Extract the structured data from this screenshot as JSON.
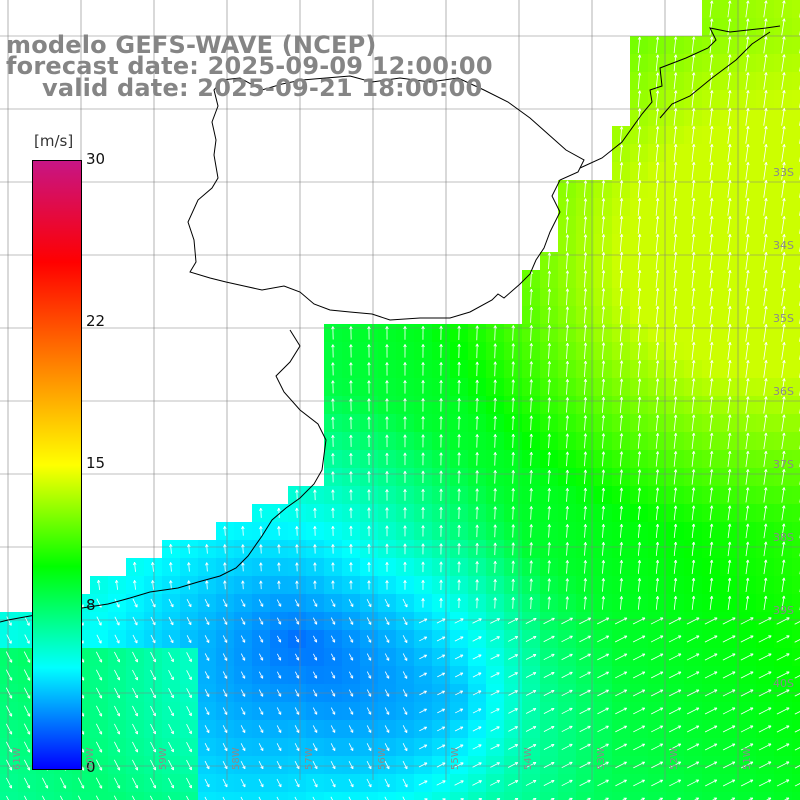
{
  "title": {
    "line1": "modelo GEFS-WAVE (NCEP)",
    "line2": "forecast date: 2025-09-09 12:00:00",
    "line3": "valid date: 2025-09-21 18:00:00"
  },
  "colorbar": {
    "unit": "[m/s]",
    "min": 0,
    "max": 30,
    "ticks": [
      {
        "value": 30,
        "label": "30"
      },
      {
        "value": 22,
        "label": "22"
      },
      {
        "value": 15,
        "label": "15"
      },
      {
        "value": 8,
        "label": "8"
      },
      {
        "value": 0,
        "label": "0"
      }
    ],
    "stops": [
      "#0000ff",
      "#00ffff",
      "#00ff00",
      "#ffff00",
      "#ff8000",
      "#ff0000",
      "#c71585"
    ]
  },
  "colors": {
    "coastline": "#000000",
    "grid": "#808080",
    "arrows": "#ffffff",
    "label_text": "#858585"
  },
  "map": {
    "lat_labels": [
      "33S",
      "34S",
      "35S",
      "36S",
      "37S",
      "38S",
      "39S",
      "40S"
    ],
    "lon_labels": [
      "61W",
      "60W",
      "59W",
      "58W",
      "57W",
      "56W",
      "55W",
      "54W",
      "53W",
      "52W",
      "51W"
    ]
  }
}
